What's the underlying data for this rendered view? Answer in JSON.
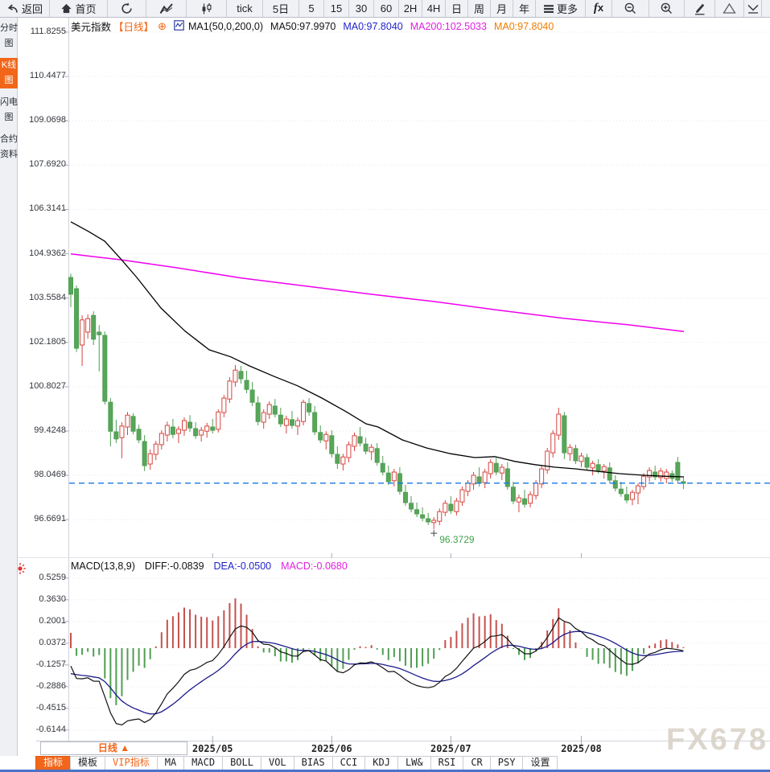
{
  "toolbar": {
    "items": [
      {
        "name": "back-button",
        "icon": "back-arrow-icon",
        "label": "返回"
      },
      {
        "name": "home-button",
        "icon": "home-icon",
        "label": "首页"
      },
      {
        "name": "refresh-button",
        "icon": "refresh-icon",
        "label": ""
      },
      {
        "name": "line-chart-button",
        "icon": "line-chart-icon",
        "label": ""
      },
      {
        "name": "candlestick-button",
        "icon": "candlestick-icon",
        "label": ""
      },
      {
        "name": "tick-button",
        "icon": "",
        "label": "tick"
      },
      {
        "name": "5d-button",
        "icon": "",
        "label": "5日"
      },
      {
        "name": "5m-button",
        "icon": "",
        "label": "5"
      },
      {
        "name": "15m-button",
        "icon": "",
        "label": "15"
      },
      {
        "name": "30m-button",
        "icon": "",
        "label": "30"
      },
      {
        "name": "60m-button",
        "icon": "",
        "label": "60"
      },
      {
        "name": "2h-button",
        "icon": "",
        "label": "2H"
      },
      {
        "name": "4h-button",
        "icon": "",
        "label": "4H"
      },
      {
        "name": "day-button",
        "icon": "",
        "label": "日"
      },
      {
        "name": "week-button",
        "icon": "",
        "label": "周"
      },
      {
        "name": "month-button",
        "icon": "",
        "label": "月"
      },
      {
        "name": "year-button",
        "icon": "",
        "label": "年"
      },
      {
        "name": "more-button",
        "icon": "menu-icon",
        "label": "更多"
      },
      {
        "name": "fx-button",
        "icon": "fx-icon",
        "label": "fx"
      },
      {
        "name": "zoom-out-button",
        "icon": "zoom-out-icon",
        "label": ""
      },
      {
        "name": "zoom-in-button",
        "icon": "zoom-in-icon",
        "label": ""
      },
      {
        "name": "draw-button",
        "icon": "pencil-icon",
        "label": ""
      },
      {
        "name": "shapes-button",
        "icon": "triangle-icon",
        "label": ""
      },
      {
        "name": "collapse-button",
        "icon": "chevron-down-icon",
        "label": ""
      }
    ]
  },
  "sidebar": {
    "items": [
      {
        "name": "sidebar-item-timeshare",
        "label": "分时图",
        "active": false
      },
      {
        "name": "sidebar-item-kline",
        "label": "K线图",
        "active": true
      },
      {
        "name": "sidebar-item-lightning",
        "label": "闪电图",
        "active": false
      },
      {
        "name": "sidebar-item-contract-info",
        "label": "合约资料",
        "active": false
      }
    ]
  },
  "main_header": {
    "symbol": "美元指数",
    "period": "【日线】",
    "plus": "⊕",
    "ma_def": "MA1(50,0,200,0)",
    "ma50": "MA50:97.9970",
    "ma0_blue": "MA0:97.8040",
    "ma200": "MA200:102.5033",
    "ma0_orange": "MA0:97.8040"
  },
  "macd_header": {
    "title": "MACD(13,8,9)",
    "diff": "DIFF:-0.0839",
    "dea": "DEA:-0.0500",
    "macd": "MACD:-0.0680"
  },
  "price_axis": {
    "labels": [
      "111.8255",
      "110.4477",
      "109.0698",
      "107.6920",
      "106.3141",
      "104.9362",
      "103.5584",
      "102.1805",
      "100.8027",
      "99.4248",
      "98.0469",
      "96.6691"
    ]
  },
  "macd_axis": {
    "labels": [
      "0.5259",
      "0.3630",
      "0.2001",
      "0.0372",
      "-0.1257",
      "-0.2886",
      "-0.4515",
      "-0.6144"
    ]
  },
  "footer": {
    "period_box": "日线 ▲",
    "tabs": [
      {
        "name": "tab-indicator",
        "label": "指标",
        "state": "active"
      },
      {
        "name": "tab-template",
        "label": "模板",
        "state": ""
      },
      {
        "name": "tab-vip-indicator",
        "label": "VIP指标",
        "state": "vip"
      },
      {
        "name": "tab-ma",
        "label": "MA",
        "state": ""
      },
      {
        "name": "tab-macd",
        "label": "MACD",
        "state": ""
      },
      {
        "name": "tab-boll",
        "label": "BOLL",
        "state": ""
      },
      {
        "name": "tab-vol",
        "label": "VOL",
        "state": ""
      },
      {
        "name": "tab-bias",
        "label": "BIAS",
        "state": ""
      },
      {
        "name": "tab-cci",
        "label": "CCI",
        "state": ""
      },
      {
        "name": "tab-kdj",
        "label": "KDJ",
        "state": ""
      },
      {
        "name": "tab-lwr",
        "label": "LW&",
        "state": ""
      },
      {
        "name": "tab-rsi",
        "label": "RSI",
        "state": ""
      },
      {
        "name": "tab-cr",
        "label": "CR",
        "state": ""
      },
      {
        "name": "tab-psy",
        "label": "PSY",
        "state": ""
      },
      {
        "name": "tab-settings",
        "label": "设置",
        "state": ""
      }
    ]
  },
  "watermark": "FX678",
  "colors": {
    "accent_orange": "#f2661a",
    "candle_up_red": "#d6453f",
    "candle_down_green": "#55a356",
    "ma50_line": "#000000",
    "ma200_line": "#f000f0",
    "last_price_dash": "#1877e0",
    "diff_line": "#111111",
    "dea_line": "#1b1b8c",
    "hist_up": "#c5524e",
    "hist_down": "#4f9e52"
  },
  "chart_data": {
    "type": "candlestick",
    "title": "美元指数 日线 (US Dollar Index Daily)",
    "y_axis": {
      "top_value": 111.8255,
      "step": 1.3779,
      "labels_count": 12
    },
    "x_month_ticks": [
      {
        "label": "2025/05",
        "index": 25
      },
      {
        "label": "2025/06",
        "index": 46
      },
      {
        "label": "2025/07",
        "index": 67
      },
      {
        "label": "2025/08",
        "index": 90
      }
    ],
    "last_price": 97.804,
    "low_annotation": {
      "index": 64,
      "value": 96.3729,
      "label": "96.3729"
    },
    "candles": [
      [
        104.2,
        104.32,
        103.28,
        103.68
      ],
      [
        103.85,
        103.95,
        101.88,
        102.0
      ],
      [
        102.1,
        103.02,
        101.45,
        102.88
      ],
      [
        102.5,
        103.05,
        102.3,
        102.92
      ],
      [
        103.02,
        103.15,
        102.1,
        102.28
      ],
      [
        102.5,
        102.72,
        101.28,
        102.42
      ],
      [
        102.4,
        102.52,
        100.25,
        100.35
      ],
      [
        100.32,
        100.45,
        98.95,
        99.42
      ],
      [
        99.4,
        99.78,
        99.05,
        99.18
      ],
      [
        99.22,
        99.7,
        98.58,
        99.58
      ],
      [
        99.55,
        100.02,
        99.3,
        99.92
      ],
      [
        99.88,
        99.98,
        99.32,
        99.42
      ],
      [
        99.48,
        99.62,
        99.05,
        99.15
      ],
      [
        99.1,
        99.3,
        98.18,
        98.35
      ],
      [
        98.4,
        98.85,
        98.22,
        98.72
      ],
      [
        98.7,
        99.12,
        98.52,
        99.02
      ],
      [
        99.0,
        99.45,
        98.85,
        99.35
      ],
      [
        99.3,
        99.72,
        99.1,
        99.6
      ],
      [
        99.55,
        99.8,
        99.2,
        99.32
      ],
      [
        99.35,
        99.58,
        99.05,
        99.48
      ],
      [
        99.45,
        99.85,
        99.28,
        99.75
      ],
      [
        99.7,
        99.92,
        99.4,
        99.52
      ],
      [
        99.5,
        99.7,
        99.18,
        99.28
      ],
      [
        99.3,
        99.55,
        99.1,
        99.45
      ],
      [
        99.42,
        99.68,
        99.22,
        99.58
      ],
      [
        99.55,
        99.8,
        99.35,
        99.45
      ],
      [
        99.48,
        100.1,
        99.38,
        100.02
      ],
      [
        100.0,
        100.55,
        99.85,
        100.45
      ],
      [
        100.42,
        101.1,
        100.3,
        100.98
      ],
      [
        100.95,
        101.48,
        100.8,
        101.32
      ],
      [
        101.28,
        101.45,
        100.9,
        101.05
      ],
      [
        101.0,
        101.3,
        100.6,
        100.72
      ],
      [
        100.7,
        100.95,
        100.2,
        100.32
      ],
      [
        100.3,
        100.5,
        99.6,
        99.72
      ],
      [
        99.7,
        100.1,
        99.5,
        100.0
      ],
      [
        99.95,
        100.35,
        99.8,
        100.25
      ],
      [
        100.2,
        100.42,
        99.85,
        99.95
      ],
      [
        99.92,
        100.15,
        99.55,
        99.65
      ],
      [
        99.6,
        99.9,
        99.35,
        99.8
      ],
      [
        99.78,
        100.05,
        99.5,
        99.6
      ],
      [
        99.58,
        99.85,
        99.3,
        99.75
      ],
      [
        99.72,
        100.4,
        99.6,
        100.32
      ],
      [
        100.28,
        100.45,
        99.9,
        100.02
      ],
      [
        100.0,
        100.2,
        99.3,
        99.4
      ],
      [
        99.38,
        99.6,
        99.05,
        99.15
      ],
      [
        99.12,
        99.42,
        98.85,
        99.32
      ],
      [
        99.28,
        99.45,
        98.6,
        98.72
      ],
      [
        98.7,
        98.95,
        98.25,
        98.42
      ],
      [
        98.4,
        98.72,
        98.2,
        98.62
      ],
      [
        98.6,
        99.1,
        98.45,
        99.0
      ],
      [
        98.95,
        99.38,
        98.8,
        99.28
      ],
      [
        99.25,
        99.55,
        98.95,
        99.05
      ],
      [
        99.02,
        99.22,
        98.7,
        98.8
      ],
      [
        98.78,
        99.02,
        98.52,
        98.92
      ],
      [
        98.88,
        99.05,
        98.35,
        98.45
      ],
      [
        98.42,
        98.65,
        98.05,
        98.15
      ],
      [
        98.12,
        98.35,
        97.75,
        97.85
      ],
      [
        97.88,
        98.25,
        97.7,
        98.15
      ],
      [
        98.1,
        98.3,
        97.45,
        97.55
      ],
      [
        97.52,
        97.75,
        97.1,
        97.2
      ],
      [
        97.18,
        97.4,
        96.9,
        97.0
      ],
      [
        96.98,
        97.2,
        96.75,
        96.85
      ],
      [
        96.82,
        97.05,
        96.62,
        96.72
      ],
      [
        96.7,
        96.88,
        96.5,
        96.6
      ],
      [
        96.58,
        96.75,
        96.37,
        96.65
      ],
      [
        96.62,
        97.02,
        96.5,
        96.92
      ],
      [
        96.9,
        97.28,
        96.78,
        97.18
      ],
      [
        97.15,
        97.4,
        96.85,
        96.95
      ],
      [
        96.92,
        97.35,
        96.8,
        97.25
      ],
      [
        97.22,
        97.7,
        97.1,
        97.6
      ],
      [
        97.55,
        97.9,
        97.4,
        97.8
      ],
      [
        97.78,
        98.15,
        97.6,
        98.05
      ],
      [
        98.0,
        98.3,
        97.7,
        97.8
      ],
      [
        97.82,
        98.25,
        97.65,
        98.15
      ],
      [
        98.1,
        98.55,
        97.95,
        98.45
      ],
      [
        98.42,
        98.6,
        98.05,
        98.15
      ],
      [
        98.12,
        98.4,
        97.9,
        98.3
      ],
      [
        98.25,
        98.45,
        97.6,
        97.7
      ],
      [
        97.68,
        97.85,
        97.15,
        97.25
      ],
      [
        97.22,
        97.45,
        96.9,
        97.35
      ],
      [
        97.32,
        97.6,
        97.05,
        97.15
      ],
      [
        97.18,
        97.55,
        97.05,
        97.45
      ],
      [
        97.42,
        97.9,
        97.3,
        97.8
      ],
      [
        97.78,
        98.35,
        97.65,
        98.25
      ],
      [
        98.22,
        98.9,
        98.1,
        98.8
      ],
      [
        98.75,
        99.45,
        98.6,
        99.35
      ],
      [
        99.3,
        100.15,
        99.15,
        99.95
      ],
      [
        99.9,
        100.02,
        98.55,
        98.75
      ],
      [
        98.72,
        99.02,
        98.5,
        98.92
      ],
      [
        98.88,
        99.0,
        98.4,
        98.5
      ],
      [
        98.48,
        98.75,
        98.3,
        98.65
      ],
      [
        98.6,
        98.72,
        98.2,
        98.3
      ],
      [
        98.28,
        98.5,
        98.05,
        98.42
      ],
      [
        98.38,
        98.55,
        98.1,
        98.2
      ],
      [
        98.18,
        98.4,
        97.95,
        98.32
      ],
      [
        98.28,
        98.45,
        97.8,
        97.9
      ],
      [
        97.88,
        98.05,
        97.55,
        97.65
      ],
      [
        97.62,
        97.85,
        97.38,
        97.48
      ],
      [
        97.45,
        97.7,
        97.18,
        97.28
      ],
      [
        97.3,
        97.6,
        97.12,
        97.52
      ],
      [
        97.5,
        97.8,
        97.15,
        97.72
      ],
      [
        97.7,
        98.12,
        97.6,
        98.02
      ],
      [
        98.0,
        98.3,
        97.85,
        98.2
      ],
      [
        98.15,
        98.35,
        97.9,
        98.0
      ],
      [
        97.98,
        98.28,
        97.85,
        98.18
      ],
      [
        97.95,
        98.25,
        97.8,
        98.15
      ],
      [
        98.1,
        98.2,
        97.85,
        97.95
      ],
      [
        98.45,
        98.62,
        97.82,
        97.9
      ],
      [
        97.85,
        97.98,
        97.62,
        97.8
      ]
    ],
    "ma50": [
      [
        88,
        105.93
      ],
      [
        110,
        105.63
      ],
      [
        130,
        105.33
      ],
      [
        150,
        104.78
      ],
      [
        170,
        104.2
      ],
      [
        200,
        103.25
      ],
      [
        230,
        102.53
      ],
      [
        260,
        101.95
      ],
      [
        287,
        101.73
      ],
      [
        310,
        101.45
      ],
      [
        340,
        101.13
      ],
      [
        370,
        100.83
      ],
      [
        400,
        100.45
      ],
      [
        430,
        100.03
      ],
      [
        455,
        99.65
      ],
      [
        470,
        99.55
      ],
      [
        500,
        99.15
      ],
      [
        530,
        98.9
      ],
      [
        560,
        98.72
      ],
      [
        590,
        98.6
      ],
      [
        615,
        98.63
      ],
      [
        640,
        98.48
      ],
      [
        665,
        98.38
      ],
      [
        690,
        98.3
      ],
      [
        715,
        98.25
      ],
      [
        740,
        98.18
      ],
      [
        770,
        98.1
      ],
      [
        800,
        98.05
      ],
      [
        825,
        98.02
      ],
      [
        850,
        98.0
      ]
    ],
    "ma200": [
      [
        88,
        104.93
      ],
      [
        150,
        104.75
      ],
      [
        220,
        104.5
      ],
      [
        300,
        104.18
      ],
      [
        380,
        103.93
      ],
      [
        460,
        103.68
      ],
      [
        540,
        103.45
      ],
      [
        620,
        103.18
      ],
      [
        700,
        102.93
      ],
      [
        780,
        102.73
      ],
      [
        850,
        102.52
      ]
    ],
    "macd": {
      "params": "13,8,9",
      "diff": -0.0839,
      "dea": -0.05,
      "macd": -0.068,
      "axis_top": 0.5259,
      "axis_step": 0.1629,
      "seed_closes": [
        105.9,
        105.5,
        105.1,
        104.7,
        104.35,
        104.0,
        103.7,
        103.45,
        103.3,
        103.35,
        103.5,
        103.7,
        103.9,
        104.05,
        104.15
      ]
    }
  }
}
